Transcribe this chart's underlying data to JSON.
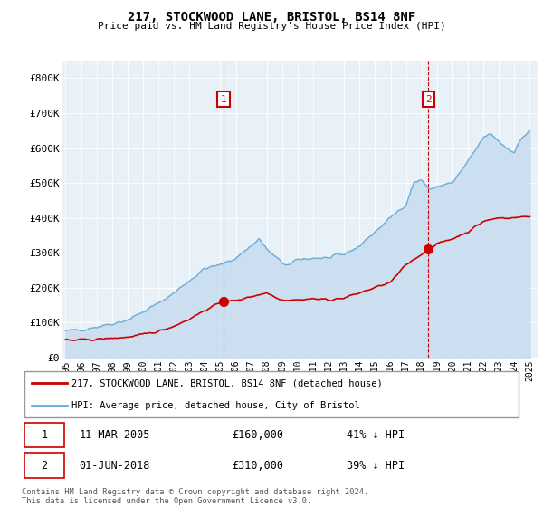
{
  "title": "217, STOCKWOOD LANE, BRISTOL, BS14 8NF",
  "subtitle": "Price paid vs. HM Land Registry's House Price Index (HPI)",
  "footer": "Contains HM Land Registry data © Crown copyright and database right 2024.\nThis data is licensed under the Open Government Licence v3.0.",
  "legend_line1": "217, STOCKWOOD LANE, BRISTOL, BS14 8NF (detached house)",
  "legend_line2": "HPI: Average price, detached house, City of Bristol",
  "sale1_date": "11-MAR-2005",
  "sale1_price": "£160,000",
  "sale1_hpi": "41% ↓ HPI",
  "sale2_date": "01-JUN-2018",
  "sale2_price": "£310,000",
  "sale2_hpi": "39% ↓ HPI",
  "hpi_color": "#6baed6",
  "hpi_fill_color": "#c6dbef",
  "price_color": "#cc0000",
  "marker_color": "#cc0000",
  "annotation_box_edgecolor": "#cc0000",
  "annotation_box_facecolor": "#ffffff",
  "vline_color": "#cc0000",
  "vline1_color": "#aaaaaa",
  "background_color": "#ffffff",
  "plot_bg_color": "#e8f0f8",
  "ylim": [
    0,
    850000
  ],
  "ytick_labels": [
    "£0",
    "£100K",
    "£200K",
    "£300K",
    "£400K",
    "£500K",
    "£600K",
    "£700K",
    "£800K"
  ],
  "yticks": [
    0,
    100000,
    200000,
    300000,
    400000,
    500000,
    600000,
    700000,
    800000
  ],
  "sale1_x": 2005.2,
  "sale1_y": 160000,
  "sale2_x": 2018.45,
  "sale2_y": 310000,
  "xlim_min": 1994.8,
  "xlim_max": 2025.5
}
